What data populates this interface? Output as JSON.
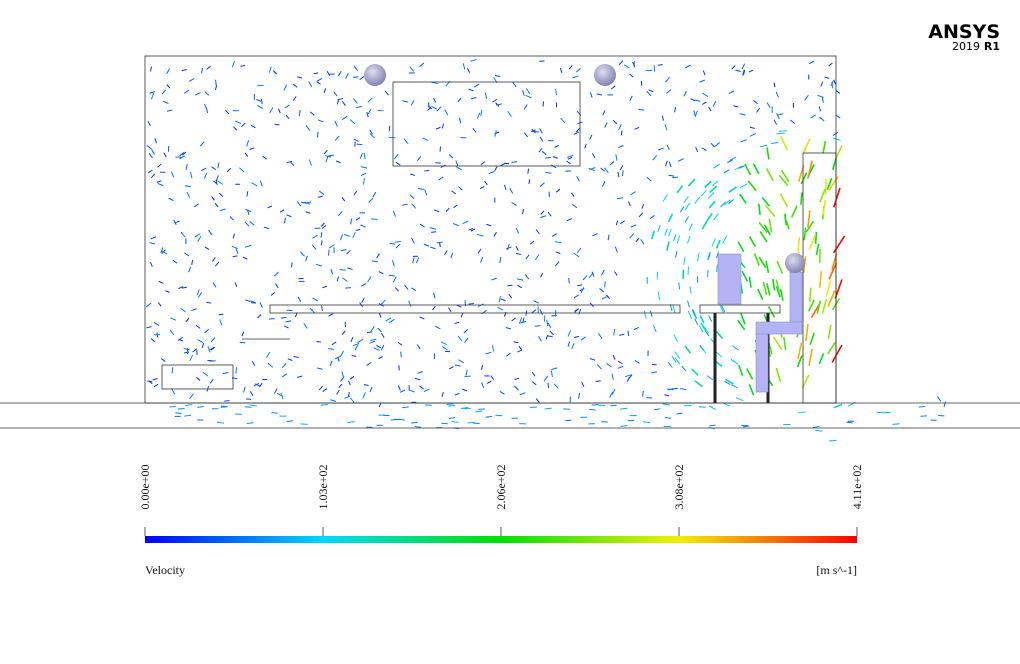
{
  "brand": {
    "name": "ANSYS",
    "version": "2019",
    "release": "R1"
  },
  "legend": {
    "title": "Velocity",
    "units": "[m s^-1]",
    "range": [
      0,
      411
    ],
    "ticks": [
      {
        "value": 0,
        "label": "0.00e+00"
      },
      {
        "value": 102.75,
        "label": "1.03e+02"
      },
      {
        "value": 205.5,
        "label": "2.06e+02"
      },
      {
        "value": 308.25,
        "label": "3.08e+02"
      },
      {
        "value": 411,
        "label": "4.11e+02"
      }
    ]
  }
}
